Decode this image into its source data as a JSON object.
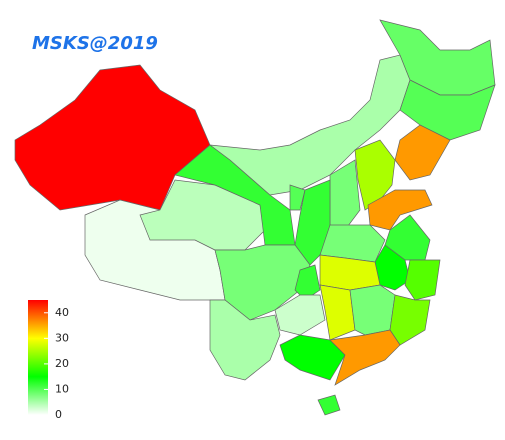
{
  "title": "MSKS@2019",
  "legend": {
    "lim": [
      0,
      45
    ],
    "ticks": [
      0,
      10,
      20,
      30,
      40
    ],
    "colors": [
      "#ffffff",
      "#00ff00",
      "#ffff00",
      "#ff0000"
    ]
  },
  "region_values": [
    45,
    1,
    4,
    12,
    5,
    9,
    10,
    36,
    25,
    8,
    36,
    10,
    12,
    8,
    12,
    15,
    20,
    28,
    8,
    12,
    3,
    5,
    28,
    8,
    22,
    15,
    36,
    12
  ]
}
